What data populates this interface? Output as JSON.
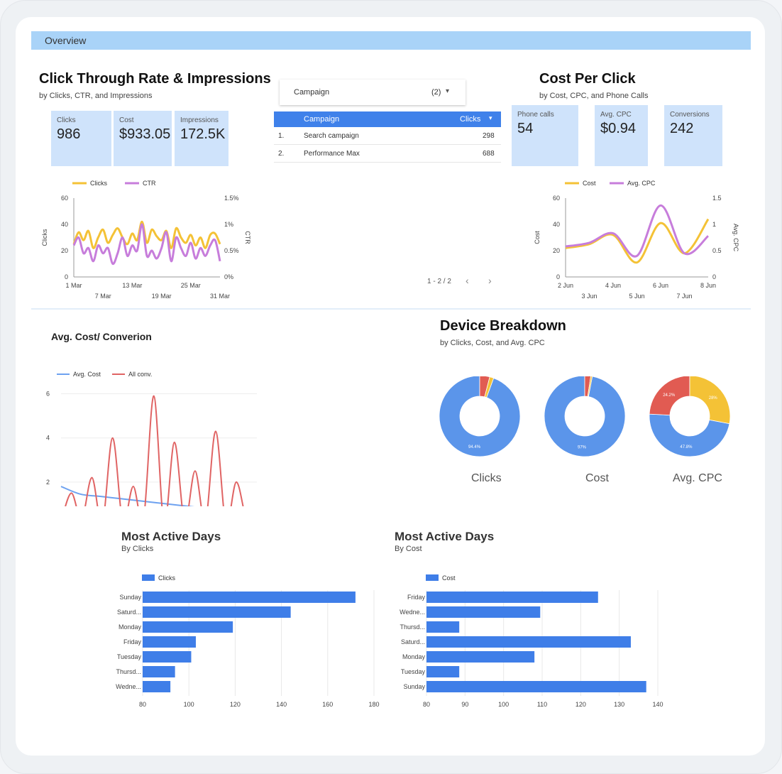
{
  "header": {
    "overview_label": "Overview"
  },
  "ctr_section": {
    "title": "Click Through Rate & Impressions",
    "subtitle": "by Clicks, CTR, and Impressions",
    "kpis": [
      {
        "label": "Clicks",
        "value": "986"
      },
      {
        "label": "Cost",
        "value": "$933.05"
      },
      {
        "label": "Impressions",
        "value": "172.5K"
      }
    ]
  },
  "campaign_filter": {
    "label": "Campaign",
    "count": "(2)",
    "chevron_icon": "chevron-down-icon"
  },
  "campaign_table": {
    "columns": [
      "Campaign",
      "Clicks"
    ],
    "rows": [
      {
        "num": "1.",
        "name": "Search campaign",
        "clicks": "298"
      },
      {
        "num": "2.",
        "name": "Performance Max",
        "clicks": "688"
      }
    ],
    "pagination": "1 - 2 / 2"
  },
  "cpc_section": {
    "title": "Cost Per Click",
    "subtitle": "by Cost, CPC, and Phone Calls",
    "kpis": [
      {
        "label": "Phone calls",
        "value": "54"
      },
      {
        "label": "Avg. CPC",
        "value": "$0.94"
      },
      {
        "label": "Conversions",
        "value": "242"
      }
    ]
  },
  "avg_cost_section": {
    "title": "Avg. Cost/ Converion"
  },
  "device_section": {
    "title": "Device Breakdown",
    "subtitle": "by Clicks, Cost, and Avg. CPC",
    "donut_labels": [
      "Clicks",
      "Cost",
      "Avg. CPC"
    ]
  },
  "colors": {
    "blue": "#5b95ea",
    "yellow": "#f4c236",
    "red": "#e15b52",
    "purple": "#c77ddb",
    "bar": "#3f7ee8",
    "line_red": "#e06464",
    "line_blue": "#6ea2f0"
  },
  "chart_data": [
    {
      "type": "line",
      "id": "ctr_line",
      "legend": [
        "Clicks",
        "CTR"
      ],
      "x_ticks": [
        "1 Mar",
        "7 Mar",
        "13 Mar",
        "19 Mar",
        "25 Mar",
        "31 Mar"
      ],
      "y_left": {
        "label": "Clicks",
        "ticks": [
          "0",
          "20",
          "40",
          "60"
        ],
        "range": [
          0,
          60
        ]
      },
      "y_right": {
        "label": "CTR",
        "ticks": [
          "0%",
          "0.5%",
          "1%",
          "1.5%"
        ],
        "range": [
          0,
          1.5
        ]
      },
      "series": [
        {
          "name": "Clicks",
          "axis": "left",
          "values": [
            25,
            34,
            28,
            35,
            22,
            30,
            36,
            26,
            32,
            37,
            30,
            25,
            33,
            28,
            42,
            26,
            36,
            31,
            28,
            35,
            22,
            37,
            30,
            26,
            32,
            24,
            30,
            22,
            32,
            33,
            25
          ]
        },
        {
          "name": "CTR",
          "axis": "right",
          "values": [
            0.6,
            0.75,
            0.45,
            0.55,
            0.3,
            0.6,
            0.45,
            0.55,
            0.25,
            0.45,
            0.75,
            0.4,
            0.6,
            0.5,
            1.0,
            0.4,
            0.5,
            0.35,
            0.55,
            0.85,
            0.3,
            0.75,
            0.55,
            0.4,
            0.65,
            0.35,
            0.55,
            0.4,
            0.6,
            0.7,
            0.3
          ]
        }
      ]
    },
    {
      "type": "line",
      "id": "cpc_line",
      "legend": [
        "Cost",
        "Avg. CPC"
      ],
      "x_ticks": [
        "2 Jun",
        "3 Jun",
        "4 Jun",
        "5 Jun",
        "6 Jun",
        "7 Jun",
        "8 Jun"
      ],
      "y_left": {
        "label": "Cost",
        "ticks": [
          "0",
          "20",
          "40",
          "60"
        ],
        "range": [
          0,
          60
        ]
      },
      "y_right": {
        "label": "Avg. CPC",
        "ticks": [
          "0",
          "0.5",
          "1",
          "1.5"
        ],
        "range": [
          0,
          1.5
        ]
      },
      "series": [
        {
          "name": "Cost",
          "axis": "left",
          "values": [
            22,
            25,
            32,
            11,
            41,
            18,
            44
          ]
        },
        {
          "name": "Avg. CPC",
          "axis": "right",
          "values": [
            0.58,
            0.65,
            0.83,
            0.4,
            1.36,
            0.45,
            0.78
          ]
        }
      ]
    },
    {
      "type": "line",
      "id": "avg_cost_line",
      "legend": [
        "Avg. Cost",
        "All conv."
      ],
      "y_ticks": [
        "2",
        "4",
        "6"
      ],
      "y_range": [
        0,
        6.5
      ],
      "series": [
        {
          "name": "Avg. Cost",
          "values": [
            1.8,
            1.45,
            1.35,
            1.25,
            1.15,
            1.05,
            0.95,
            0.85,
            0.75,
            0.6,
            0.45
          ]
        },
        {
          "name": "All conv.",
          "values": [
            0.2,
            1.5,
            0.3,
            2.2,
            0.1,
            4.0,
            0.2,
            1.8,
            0.3,
            5.9,
            0.1,
            3.8,
            0.2,
            2.5,
            0.2,
            4.3,
            0.1,
            2.0,
            0.3,
            0.2
          ]
        }
      ]
    },
    {
      "type": "pie",
      "id": "device_donuts",
      "donuts": [
        {
          "name": "Clicks",
          "slices": [
            {
              "value": 94.4,
              "label": "94.4%",
              "color": "#5b95ea"
            },
            {
              "value": 4.0,
              "label": "",
              "color": "#e15b52"
            },
            {
              "value": 1.6,
              "label": "",
              "color": "#f4c236"
            }
          ]
        },
        {
          "name": "Cost",
          "slices": [
            {
              "value": 97,
              "label": "97%",
              "color": "#5b95ea"
            },
            {
              "value": 2.4,
              "label": "",
              "color": "#e15b52"
            },
            {
              "value": 0.6,
              "label": "",
              "color": "#f4c236"
            }
          ]
        },
        {
          "name": "Avg. CPC",
          "slices": [
            {
              "value": 47.8,
              "label": "47.8%",
              "color": "#5b95ea"
            },
            {
              "value": 24.2,
              "label": "24.2%",
              "color": "#e15b52"
            },
            {
              "value": 28,
              "label": "28%",
              "color": "#f4c236"
            }
          ]
        }
      ]
    },
    {
      "type": "bar",
      "id": "active_clicks",
      "title": "Most Active Days",
      "subtitle": "By Clicks",
      "legend": "Clicks",
      "categories": [
        "Sunday",
        "Saturd...",
        "Monday",
        "Friday",
        "Tuesday",
        "Thursd...",
        "Wedne..."
      ],
      "values": [
        172,
        144,
        119,
        103,
        101,
        94,
        92
      ],
      "xlim": [
        80,
        180
      ],
      "x_ticks": [
        "80",
        "100",
        "120",
        "140",
        "160",
        "180"
      ]
    },
    {
      "type": "bar",
      "id": "active_cost",
      "title": "Most Active Days",
      "subtitle": "By Cost",
      "legend": "Cost",
      "categories": [
        "Friday",
        "Wedne...",
        "Thursd...",
        "Saturd...",
        "Monday",
        "Tuesday",
        "Sunday"
      ],
      "values": [
        124.5,
        109.5,
        88.5,
        133,
        108,
        88.5,
        137
      ],
      "xlim": [
        80,
        140
      ],
      "x_ticks": [
        "80",
        "90",
        "100",
        "110",
        "120",
        "130",
        "140"
      ]
    }
  ]
}
